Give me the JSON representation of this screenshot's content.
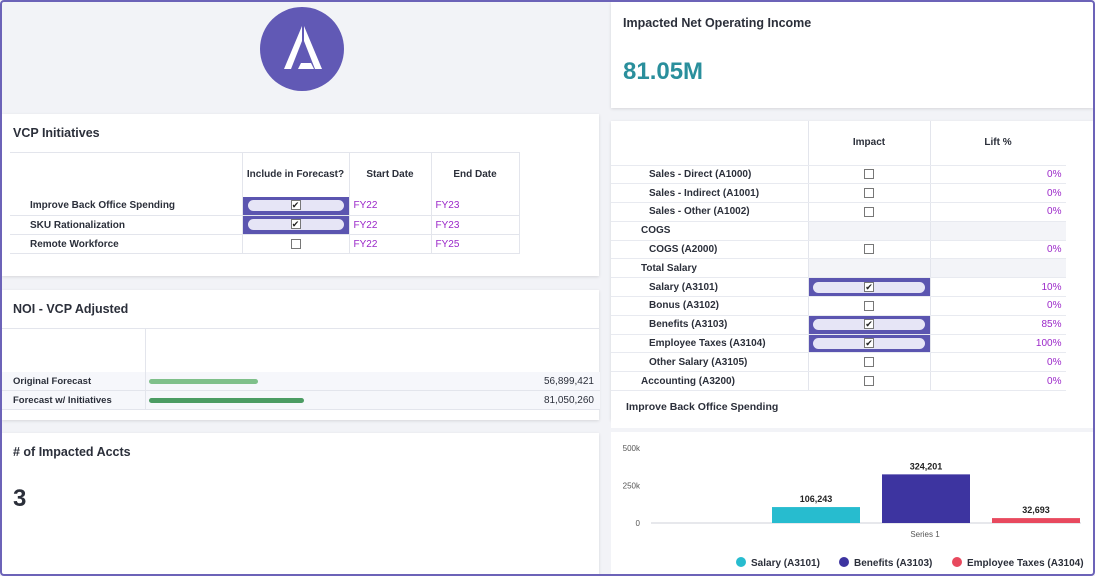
{
  "logo": {
    "icon": "a-logo-icon"
  },
  "vcp": {
    "title": "VCP Initiatives",
    "headers": [
      "Include in Forecast?",
      "Start Date",
      "End Date"
    ],
    "rows": [
      {
        "label": "Improve Back Office Spending",
        "checked": true,
        "start": "FY22",
        "end": "FY23"
      },
      {
        "label": "SKU Rationalization",
        "checked": true,
        "start": "FY22",
        "end": "FY23"
      },
      {
        "label": "Remote Workforce",
        "checked": false,
        "start": "FY22",
        "end": "FY25"
      }
    ]
  },
  "noi_card": {
    "title": "NOI - VCP Adjusted",
    "rows": [
      {
        "label": "Original Forecast",
        "value": "56,899,421",
        "ratio": 0.702,
        "color": "#7fc08a"
      },
      {
        "label": "Forecast w/ Initiatives",
        "value": "81,050,260",
        "ratio": 1.0,
        "color": "#4c9c63"
      }
    ]
  },
  "impacted_accts": {
    "title": "# of Impacted Accts",
    "value": "3"
  },
  "net_income": {
    "title": "Impacted Net Operating Income",
    "value": "81.05M",
    "color": "#2a8f9c"
  },
  "accounts": {
    "headers": [
      "Impact",
      "Lift %"
    ],
    "rows": [
      {
        "label": "Sales - Direct (A1000)",
        "indent": 2,
        "checkbox": true,
        "checked": false,
        "lift": "0%"
      },
      {
        "label": "Sales - Indirect (A1001)",
        "indent": 2,
        "checkbox": true,
        "checked": false,
        "lift": "0%"
      },
      {
        "label": "Sales - Other (A1002)",
        "indent": 2,
        "checkbox": true,
        "checked": false,
        "lift": "0%"
      },
      {
        "label": "COGS",
        "indent": 1,
        "checkbox": false,
        "checked": false,
        "lift": ""
      },
      {
        "label": "COGS (A2000)",
        "indent": 2,
        "checkbox": true,
        "checked": false,
        "lift": "0%"
      },
      {
        "label": "Total Salary",
        "indent": 1,
        "checkbox": false,
        "checked": false,
        "lift": ""
      },
      {
        "label": "Salary (A3101)",
        "indent": 2,
        "checkbox": true,
        "checked": true,
        "lift": "10%"
      },
      {
        "label": "Bonus (A3102)",
        "indent": 2,
        "checkbox": true,
        "checked": false,
        "lift": "0%"
      },
      {
        "label": "Benefits (A3103)",
        "indent": 2,
        "checkbox": true,
        "checked": true,
        "lift": "85%"
      },
      {
        "label": "Employee Taxes (A3104)",
        "indent": 2,
        "checkbox": true,
        "checked": true,
        "lift": "100%"
      },
      {
        "label": "Other Salary (A3105)",
        "indent": 2,
        "checkbox": true,
        "checked": false,
        "lift": "0%"
      },
      {
        "label": "Accounting (A3200)",
        "indent": 1,
        "checkbox": true,
        "checked": false,
        "lift": "0%"
      }
    ]
  },
  "chart_card": {
    "title": "Improve Back Office Spending"
  },
  "chart_data": {
    "type": "bar",
    "title": "Improve Back Office Spending",
    "categories": [
      "Series 1"
    ],
    "series": [
      {
        "name": "Salary (A3101)",
        "values": [
          106243
        ],
        "label": "106,243",
        "color": "#27bccf"
      },
      {
        "name": "Benefits (A3103)",
        "values": [
          324201
        ],
        "label": "324,201",
        "color": "#3d34a0"
      },
      {
        "name": "Employee Taxes (A3104)",
        "values": [
          32693
        ],
        "label": "32,693",
        "color": "#e8495e"
      }
    ],
    "yticks": [
      "500k",
      "250k",
      "0"
    ],
    "ylim": [
      0,
      500000
    ],
    "grid": false,
    "legend": "bottom"
  }
}
